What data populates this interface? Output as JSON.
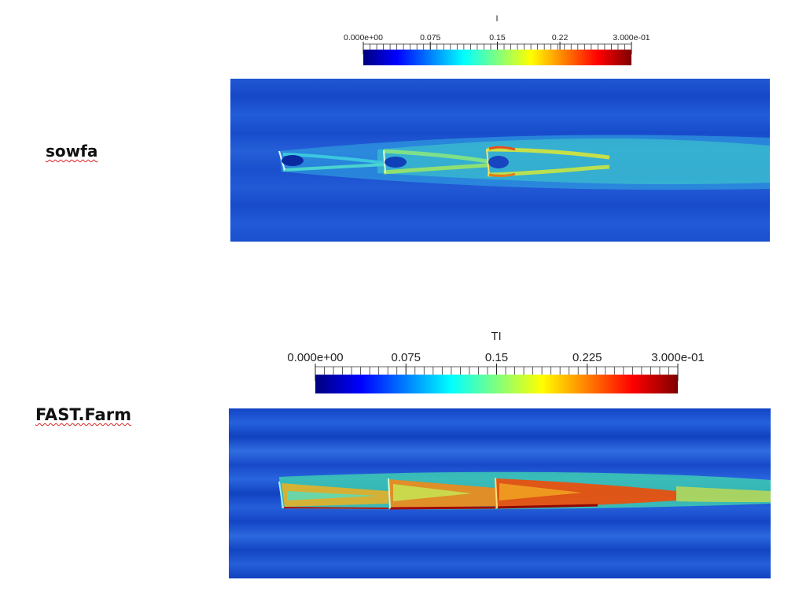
{
  "colormap": [
    "#00007f",
    "#0000ff",
    "#007fff",
    "#00ffff",
    "#7fff7f",
    "#ffff00",
    "#ff7f00",
    "#ff0000",
    "#7f0000"
  ],
  "panels": [
    {
      "label": "sowfa",
      "colorbar": {
        "title": "I",
        "tick_labels": [
          "0.000e+00",
          "0.075",
          "0.15",
          "0.22",
          "3.000e-01"
        ],
        "tick_values": [
          0,
          0.075,
          0.15,
          0.22,
          0.3
        ],
        "range": [
          0,
          0.3
        ]
      },
      "chart_data": {
        "type": "heatmap",
        "title": "I",
        "variable": "turbulence intensity",
        "color_range": [
          0,
          0.3
        ],
        "background_value": 0.05,
        "turbine_rows": 3,
        "peak_value": 0.22
      }
    },
    {
      "label": "FAST.Farm",
      "colorbar": {
        "title": "TI",
        "tick_labels": [
          "0.000e+00",
          "0.075",
          "0.15",
          "0.225",
          "3.000e-01"
        ],
        "tick_values": [
          0,
          0.075,
          0.15,
          0.225,
          0.3
        ],
        "range": [
          0,
          0.3
        ]
      },
      "chart_data": {
        "type": "heatmap",
        "title": "TI",
        "variable": "turbulence intensity",
        "color_range": [
          0,
          0.3
        ],
        "background_value": 0.05,
        "turbine_rows": 3,
        "peak_value": 0.26
      }
    }
  ]
}
